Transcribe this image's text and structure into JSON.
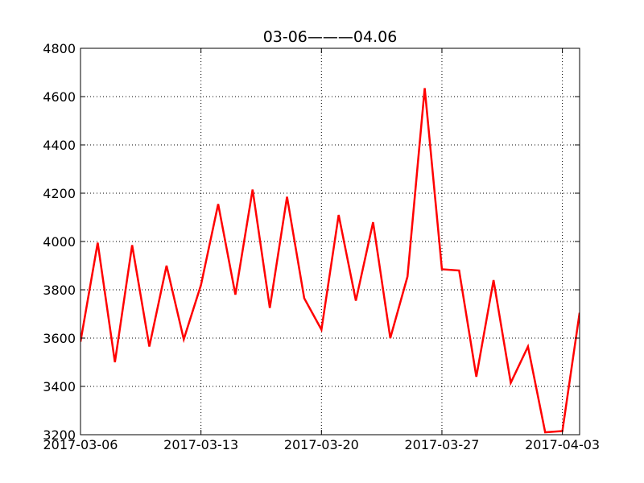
{
  "chart_data": {
    "type": "line",
    "title": "03-06———04.06",
    "xlabel": "",
    "ylabel": "",
    "grid": true,
    "ylim": [
      3200,
      4800
    ],
    "yticks": [
      3200,
      3400,
      3600,
      3800,
      4000,
      4200,
      4400,
      4600,
      4800
    ],
    "xlim": [
      "2017-03-06",
      "2017-04-04"
    ],
    "xticks": [
      "2017-03-06",
      "2017-03-13",
      "2017-03-20",
      "2017-03-27",
      "2017-04-03"
    ],
    "series": [
      {
        "color": "#ff0000",
        "x": [
          "2017-03-06",
          "2017-03-07",
          "2017-03-08",
          "2017-03-09",
          "2017-03-10",
          "2017-03-11",
          "2017-03-12",
          "2017-03-13",
          "2017-03-14",
          "2017-03-15",
          "2017-03-16",
          "2017-03-17",
          "2017-03-18",
          "2017-03-19",
          "2017-03-20",
          "2017-03-21",
          "2017-03-22",
          "2017-03-23",
          "2017-03-24",
          "2017-03-25",
          "2017-03-26",
          "2017-03-27",
          "2017-03-28",
          "2017-03-29",
          "2017-03-30",
          "2017-03-31",
          "2017-04-01",
          "2017-04-02",
          "2017-04-03",
          "2017-04-04"
        ],
        "values": [
          3585,
          3995,
          3500,
          3985,
          3565,
          3900,
          3595,
          3820,
          4155,
          3780,
          4215,
          3725,
          4185,
          3765,
          3635,
          4110,
          3755,
          4080,
          3600,
          3855,
          4635,
          3885,
          3880,
          3440,
          3840,
          3415,
          3565,
          3210,
          3215,
          3705
        ]
      }
    ]
  }
}
